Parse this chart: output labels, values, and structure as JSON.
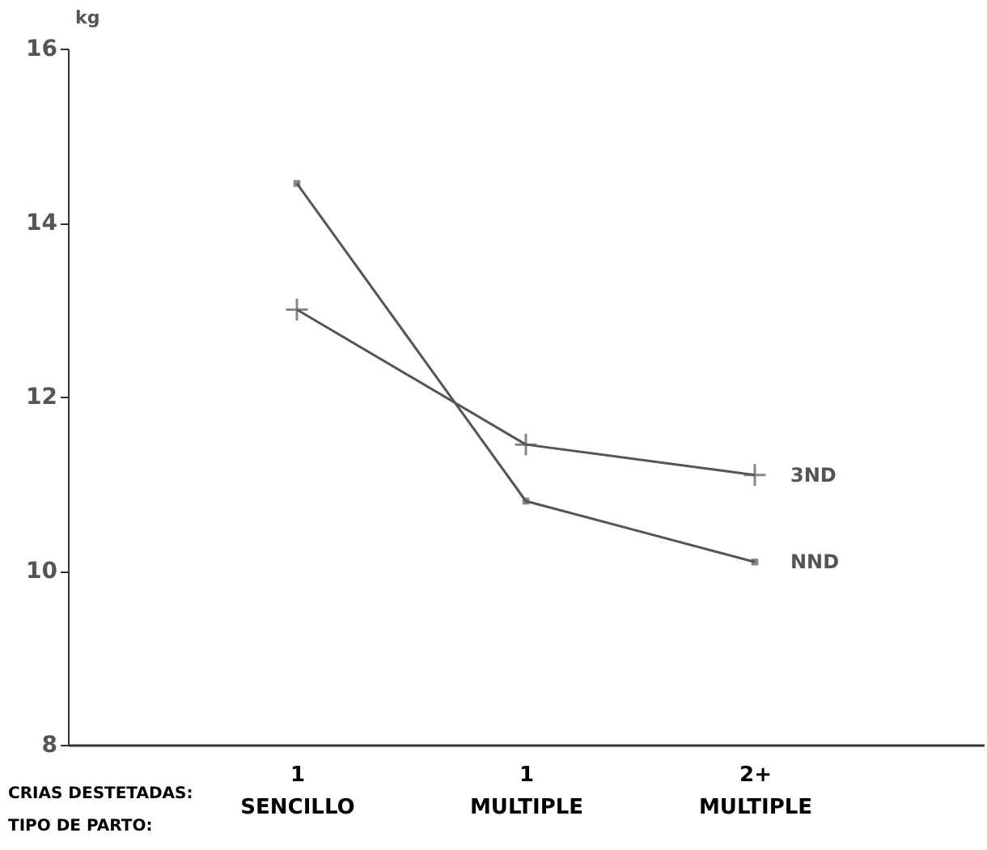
{
  "chart_data": {
    "type": "line",
    "ylabel": "kg",
    "categories": [
      "1\nSENCILLO",
      "1\nMULTIPLE",
      "2+\nMULTIPLE"
    ],
    "annotations": [
      "CRIAS DESTETADAS:",
      "TIPO DE PARTO:"
    ],
    "ylim": [
      8,
      16
    ],
    "yticks": [
      8,
      10,
      12,
      14,
      16
    ],
    "grid": false,
    "legend": false,
    "series": [
      {
        "name": "3ND",
        "color": "#555555",
        "marker": "cross",
        "values": [
          13.0,
          11.45,
          11.1
        ]
      },
      {
        "name": "NND",
        "color": "#555555",
        "marker": "square",
        "values": [
          14.45,
          10.8,
          10.1
        ]
      }
    ]
  }
}
